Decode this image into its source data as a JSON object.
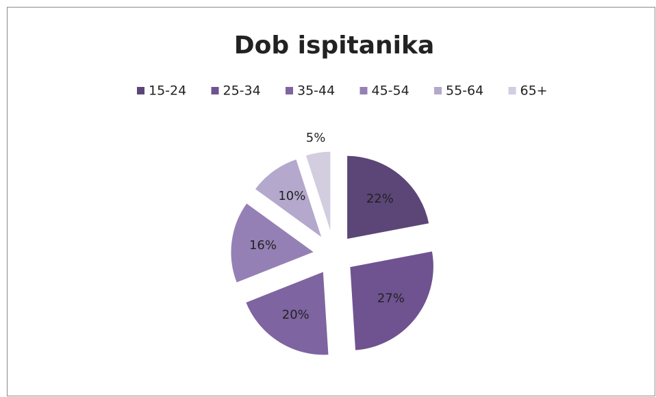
{
  "chart_data": {
    "type": "pie",
    "title": "Dob ispitanika",
    "categories": [
      "15-24",
      "25-34",
      "35-44",
      "45-54",
      "55-64",
      "65+"
    ],
    "values": [
      22,
      27,
      20,
      16,
      10,
      5
    ],
    "value_labels": [
      "22%",
      "27%",
      "20%",
      "16%",
      "10%",
      "5%"
    ],
    "colors": [
      "#5c4577",
      "#6e5390",
      "#7e64a0",
      "#9580b5",
      "#b4a8cc",
      "#d3cde0"
    ],
    "legend": "top"
  }
}
